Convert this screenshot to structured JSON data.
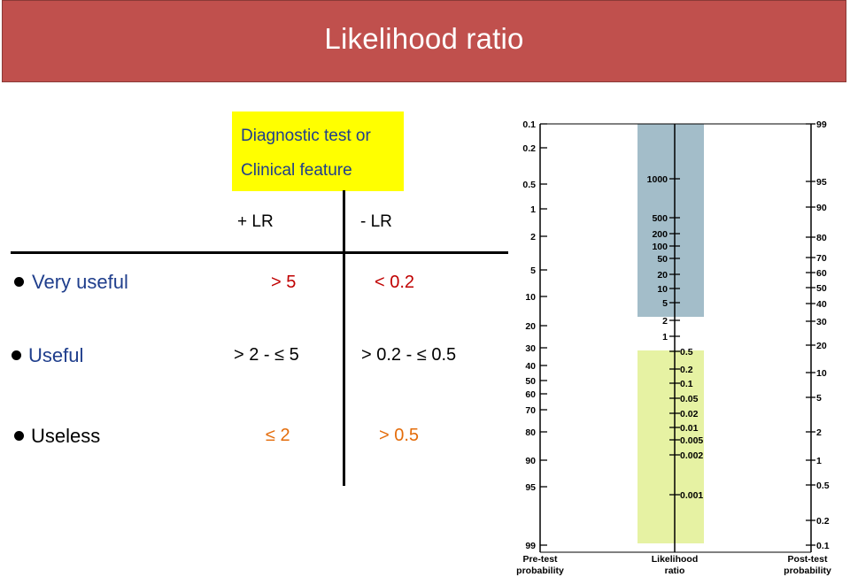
{
  "colors": {
    "title_bg": "#c0504d",
    "title_text": "#ffffff",
    "highlight_yellow": "#ffff00",
    "header_text": "#1f3e8c",
    "very_useful": "#1f3e8c",
    "useful": "#1f3e8c",
    "useless": "#000000",
    "red_value": "#c00000",
    "orange_value": "#e46c0a",
    "nomogram_upper_band": "#a3bdc9",
    "nomogram_lower_band": "#e6f2a3"
  },
  "title": "Likelihood ratio",
  "highlight_box": {
    "line1": "Diagnostic test or",
    "line2": "Clinical  feature"
  },
  "columns": {
    "positive": "+ LR",
    "negative": "- LR"
  },
  "rows": [
    {
      "label": "Very useful",
      "plus_lr": "> 5",
      "minus_lr": "< 0.2"
    },
    {
      "label": "Useful",
      "plus_lr": "> 2 -  ≤ 5",
      "minus_lr": "> 0.2 - ≤ 0.5"
    },
    {
      "label": "Useless",
      "plus_lr": "≤ 2",
      "minus_lr": "> 0.5"
    }
  ],
  "nomogram": {
    "pretest_ticks": [
      "0.1",
      "0.2",
      "0.5",
      "1",
      "2",
      "5",
      "10",
      "20",
      "30",
      "40",
      "50",
      "60",
      "70",
      "80",
      "90",
      "95",
      "99"
    ],
    "lr_ticks_high": [
      "1000",
      "500",
      "200",
      "100",
      "50",
      "20",
      "10",
      "5",
      "2",
      "1"
    ],
    "lr_ticks_low": [
      "0.5",
      "0.2",
      "0.1",
      "0.05",
      "0.02",
      "0.01",
      "0.005",
      "0.002",
      "0.001"
    ],
    "posttest_ticks": [
      "99",
      "95",
      "90",
      "80",
      "70",
      "60",
      "50",
      "40",
      "30",
      "20",
      "10",
      "5",
      "2",
      "1",
      "0.5",
      "0.2",
      "0.1"
    ],
    "label_pretest": [
      "Pre-test",
      "probability"
    ],
    "label_lr": [
      "Likelihood",
      "ratio"
    ],
    "label_posttest": [
      "Post-test",
      "probability"
    ]
  }
}
